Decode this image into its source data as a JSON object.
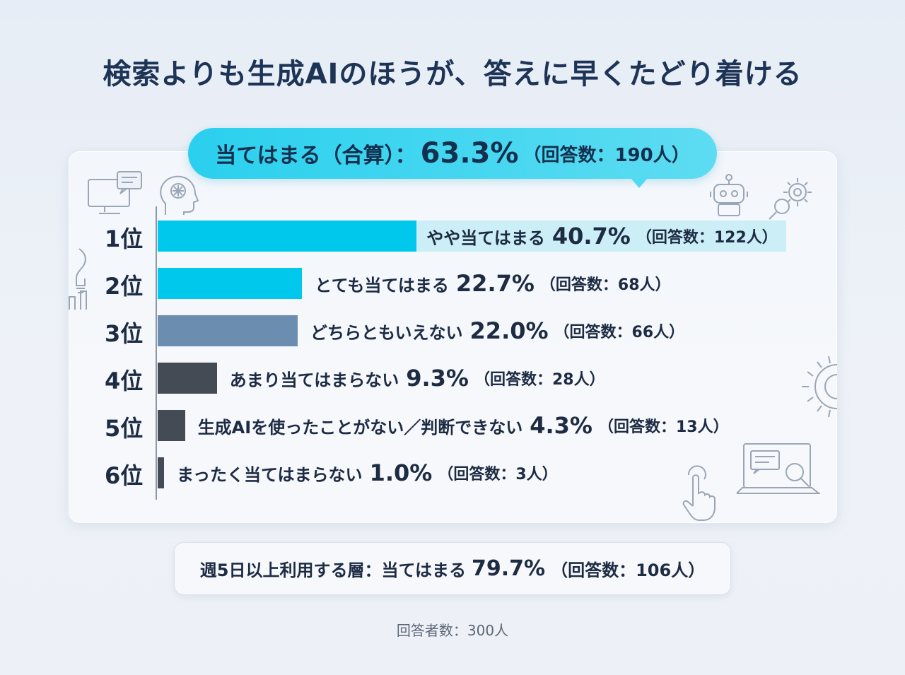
{
  "title": "検索よりも生成AIのほうが、答えに早くたどり着ける",
  "callout": {
    "label": "当てはまる（合算）：",
    "percent": "63.3%",
    "count": "（回答数：190人）"
  },
  "chart_data": {
    "type": "bar",
    "orientation": "horizontal",
    "xlim": [
      0,
      100
    ],
    "items": [
      {
        "rank": "1位",
        "label": "やや当てはまる",
        "value": 40.7,
        "percent": "40.7%",
        "count": "（回答数：122人）",
        "color": "#00c8ec"
      },
      {
        "rank": "2位",
        "label": "とても当てはまる",
        "value": 22.7,
        "percent": "22.7%",
        "count": "（回答数：68人）",
        "color": "#00c8ec"
      },
      {
        "rank": "3位",
        "label": "どちらともいえない",
        "value": 22.0,
        "percent": "22.0%",
        "count": "（回答数：66人）",
        "color": "#6b8db0"
      },
      {
        "rank": "4位",
        "label": "あまり当てはまらない",
        "value": 9.3,
        "percent": "9.3%",
        "count": "（回答数：28人）",
        "color": "#454b54"
      },
      {
        "rank": "5位",
        "label": "生成AIを使ったことがない／判断できない",
        "value": 4.3,
        "percent": "4.3%",
        "count": "（回答数：13人）",
        "color": "#454b54"
      },
      {
        "rank": "6位",
        "label": "まったく当てはまらない",
        "value": 1.0,
        "percent": "1.0%",
        "count": "（回答数：3人）",
        "color": "#454b54"
      }
    ]
  },
  "summary": {
    "label": "週5日以上利用する層：当てはまる",
    "percent": "79.7%",
    "count": "（回答数：106人）"
  },
  "footer": "回答者数：300人",
  "icons": [
    "monitor-chat-icon",
    "ai-head-icon",
    "robot-icon",
    "gear-search-icon",
    "gear-icon",
    "laptop-search-icon",
    "pointer-hand-icon",
    "chart-lightbulb-icon"
  ]
}
